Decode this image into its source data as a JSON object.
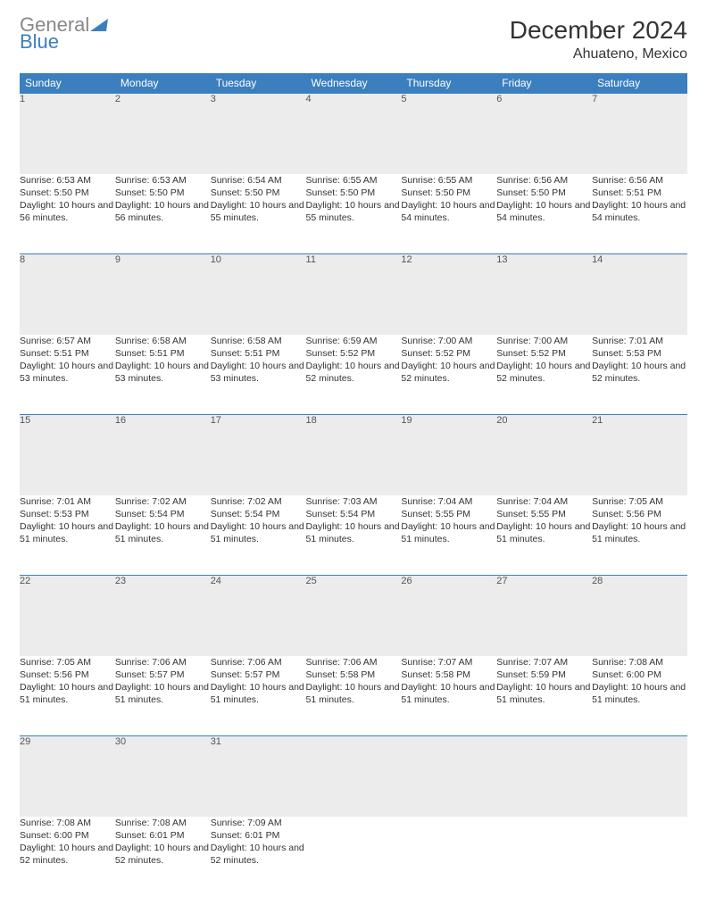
{
  "logo": {
    "line1": "General",
    "line2": "Blue"
  },
  "title": "December 2024",
  "location": "Ahuateno, Mexico",
  "colors": {
    "header_bg": "#3b7fbf",
    "header_fg": "#ffffff",
    "daynum_bg": "#ececec",
    "border": "#3b7fbf",
    "text": "#333333",
    "logo_gray": "#888888",
    "logo_blue": "#3b7fbf"
  },
  "day_headers": [
    "Sunday",
    "Monday",
    "Tuesday",
    "Wednesday",
    "Thursday",
    "Friday",
    "Saturday"
  ],
  "weeks": [
    [
      {
        "n": "1",
        "sr": "6:53 AM",
        "ss": "5:50 PM",
        "d": "10 hours and 56 minutes."
      },
      {
        "n": "2",
        "sr": "6:53 AM",
        "ss": "5:50 PM",
        "d": "10 hours and 56 minutes."
      },
      {
        "n": "3",
        "sr": "6:54 AM",
        "ss": "5:50 PM",
        "d": "10 hours and 55 minutes."
      },
      {
        "n": "4",
        "sr": "6:55 AM",
        "ss": "5:50 PM",
        "d": "10 hours and 55 minutes."
      },
      {
        "n": "5",
        "sr": "6:55 AM",
        "ss": "5:50 PM",
        "d": "10 hours and 54 minutes."
      },
      {
        "n": "6",
        "sr": "6:56 AM",
        "ss": "5:50 PM",
        "d": "10 hours and 54 minutes."
      },
      {
        "n": "7",
        "sr": "6:56 AM",
        "ss": "5:51 PM",
        "d": "10 hours and 54 minutes."
      }
    ],
    [
      {
        "n": "8",
        "sr": "6:57 AM",
        "ss": "5:51 PM",
        "d": "10 hours and 53 minutes."
      },
      {
        "n": "9",
        "sr": "6:58 AM",
        "ss": "5:51 PM",
        "d": "10 hours and 53 minutes."
      },
      {
        "n": "10",
        "sr": "6:58 AM",
        "ss": "5:51 PM",
        "d": "10 hours and 53 minutes."
      },
      {
        "n": "11",
        "sr": "6:59 AM",
        "ss": "5:52 PM",
        "d": "10 hours and 52 minutes."
      },
      {
        "n": "12",
        "sr": "7:00 AM",
        "ss": "5:52 PM",
        "d": "10 hours and 52 minutes."
      },
      {
        "n": "13",
        "sr": "7:00 AM",
        "ss": "5:52 PM",
        "d": "10 hours and 52 minutes."
      },
      {
        "n": "14",
        "sr": "7:01 AM",
        "ss": "5:53 PM",
        "d": "10 hours and 52 minutes."
      }
    ],
    [
      {
        "n": "15",
        "sr": "7:01 AM",
        "ss": "5:53 PM",
        "d": "10 hours and 51 minutes."
      },
      {
        "n": "16",
        "sr": "7:02 AM",
        "ss": "5:54 PM",
        "d": "10 hours and 51 minutes."
      },
      {
        "n": "17",
        "sr": "7:02 AM",
        "ss": "5:54 PM",
        "d": "10 hours and 51 minutes."
      },
      {
        "n": "18",
        "sr": "7:03 AM",
        "ss": "5:54 PM",
        "d": "10 hours and 51 minutes."
      },
      {
        "n": "19",
        "sr": "7:04 AM",
        "ss": "5:55 PM",
        "d": "10 hours and 51 minutes."
      },
      {
        "n": "20",
        "sr": "7:04 AM",
        "ss": "5:55 PM",
        "d": "10 hours and 51 minutes."
      },
      {
        "n": "21",
        "sr": "7:05 AM",
        "ss": "5:56 PM",
        "d": "10 hours and 51 minutes."
      }
    ],
    [
      {
        "n": "22",
        "sr": "7:05 AM",
        "ss": "5:56 PM",
        "d": "10 hours and 51 minutes."
      },
      {
        "n": "23",
        "sr": "7:06 AM",
        "ss": "5:57 PM",
        "d": "10 hours and 51 minutes."
      },
      {
        "n": "24",
        "sr": "7:06 AM",
        "ss": "5:57 PM",
        "d": "10 hours and 51 minutes."
      },
      {
        "n": "25",
        "sr": "7:06 AM",
        "ss": "5:58 PM",
        "d": "10 hours and 51 minutes."
      },
      {
        "n": "26",
        "sr": "7:07 AM",
        "ss": "5:58 PM",
        "d": "10 hours and 51 minutes."
      },
      {
        "n": "27",
        "sr": "7:07 AM",
        "ss": "5:59 PM",
        "d": "10 hours and 51 minutes."
      },
      {
        "n": "28",
        "sr": "7:08 AM",
        "ss": "6:00 PM",
        "d": "10 hours and 51 minutes."
      }
    ],
    [
      {
        "n": "29",
        "sr": "7:08 AM",
        "ss": "6:00 PM",
        "d": "10 hours and 52 minutes."
      },
      {
        "n": "30",
        "sr": "7:08 AM",
        "ss": "6:01 PM",
        "d": "10 hours and 52 minutes."
      },
      {
        "n": "31",
        "sr": "7:09 AM",
        "ss": "6:01 PM",
        "d": "10 hours and 52 minutes."
      },
      null,
      null,
      null,
      null
    ]
  ],
  "labels": {
    "sunrise": "Sunrise:",
    "sunset": "Sunset:",
    "daylight": "Daylight:"
  }
}
